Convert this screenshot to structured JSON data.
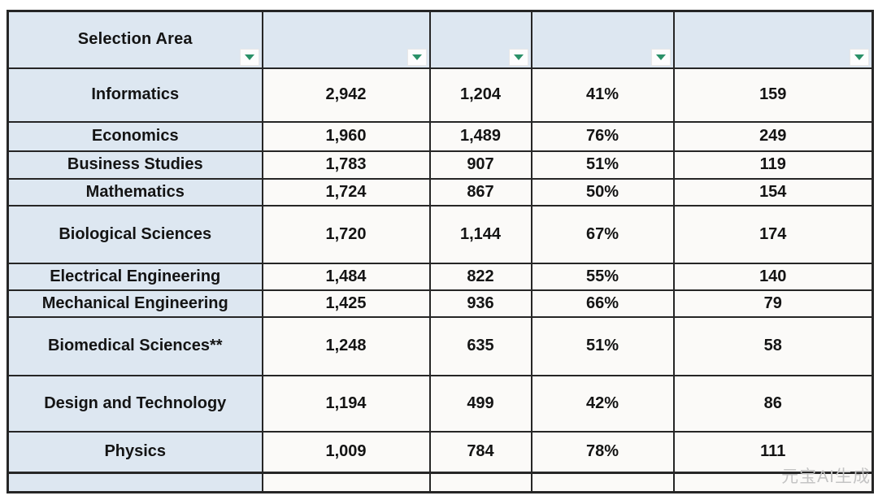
{
  "table": {
    "header": {
      "columns": [
        {
          "label": "Selection Area"
        },
        {
          "label": ""
        },
        {
          "label": ""
        },
        {
          "label": ""
        },
        {
          "label": ""
        }
      ],
      "filter_icon": "filter-dropdown-triangle"
    },
    "rows": [
      {
        "area": "Informatics",
        "values": [
          "2,942",
          "1,204",
          "41%",
          "159"
        ]
      },
      {
        "area": "Economics",
        "values": [
          "1,960",
          "1,489",
          "76%",
          "249"
        ]
      },
      {
        "area": "Business Studies",
        "values": [
          "1,783",
          "907",
          "51%",
          "119"
        ]
      },
      {
        "area": "Mathematics",
        "values": [
          "1,724",
          "867",
          "50%",
          "154"
        ]
      },
      {
        "area": "Biological Sciences",
        "values": [
          "1,720",
          "1,144",
          "67%",
          "174"
        ]
      },
      {
        "area": "Electrical Engineering",
        "values": [
          "1,484",
          "822",
          "55%",
          "140"
        ]
      },
      {
        "area": "Mechanical Engineering",
        "values": [
          "1,425",
          "936",
          "66%",
          "79"
        ]
      },
      {
        "area": "Biomedical Sciences**",
        "values": [
          "1,248",
          "635",
          "51%",
          "58"
        ]
      },
      {
        "area": "Design and Technology",
        "values": [
          "1,194",
          "499",
          "42%",
          "86"
        ]
      },
      {
        "area": "Physics",
        "values": [
          "1,009",
          "784",
          "78%",
          "111"
        ]
      }
    ]
  },
  "watermark": "元宝AI生成",
  "colors": {
    "header_bg": "#DDE7F1",
    "area_column_bg": "#DDE7F1",
    "cell_bg": "#FBFAF8",
    "border": "#262626",
    "filter_green": "#2A9168",
    "text": "#141414",
    "watermark_gray": "#C4C4C4"
  }
}
